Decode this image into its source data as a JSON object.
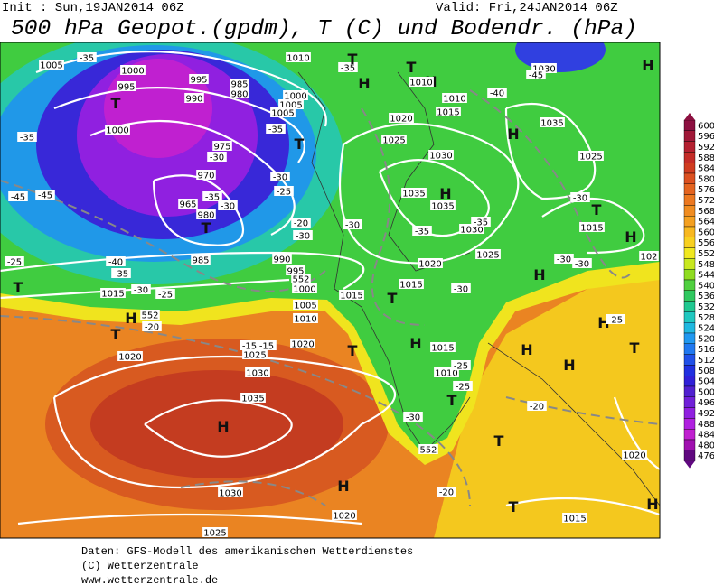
{
  "header": {
    "init": "Init : Sun,19JAN2014 06Z",
    "valid": "Valid: Fri,24JAN2014 06Z",
    "title": "500 hPa Geopot.(gpdm), T (C) und Bodendr. (hPa)"
  },
  "color_scale": {
    "levels": [
      600,
      596,
      592,
      588,
      584,
      580,
      576,
      572,
      568,
      564,
      560,
      556,
      552,
      548,
      544,
      540,
      536,
      532,
      528,
      524,
      520,
      516,
      512,
      508,
      504,
      500,
      496,
      492,
      488,
      484,
      480,
      476
    ],
    "colors": [
      "#8c1040",
      "#a01838",
      "#b42030",
      "#c42c28",
      "#d03c20",
      "#dc5020",
      "#e46420",
      "#ec7820",
      "#f08c20",
      "#f4a020",
      "#f8b820",
      "#f8d020",
      "#f0e820",
      "#c8e820",
      "#90dc20",
      "#50d040",
      "#30c860",
      "#20c890",
      "#20c8c0",
      "#20b8e0",
      "#2098f0",
      "#2078f0",
      "#2050e8",
      "#2030e0",
      "#3020d8",
      "#5020d0",
      "#7020d8",
      "#9020e0",
      "#b020e0",
      "#c020d0",
      "#a010b0",
      "#600880"
    ]
  },
  "map_labels": [
    "1005",
    "-35",
    "1000",
    "995",
    "995",
    "985",
    "980",
    "990",
    "1000",
    "T",
    "-35",
    "975",
    "-30",
    "970",
    "965",
    "980",
    "-35",
    "-30",
    "T",
    "985",
    "-25",
    "-40",
    "-35",
    "-45",
    "-45",
    "1015",
    "-30",
    "-25",
    "T",
    "H",
    "T",
    "-20",
    "1020",
    "1025",
    "1030",
    "1035",
    "H",
    "-15",
    "-15",
    "1020",
    "1030",
    "1025",
    "1020",
    "H",
    "T",
    "1010",
    "-35",
    "T",
    "H",
    "T",
    "H",
    "1010",
    "1010",
    "1015",
    "1020",
    "1025",
    "1030",
    "1035",
    "H",
    "1035",
    "-35",
    "1030",
    "-35",
    "1025",
    "1020",
    "1015",
    "H",
    "1005",
    "1000",
    "1005",
    "-35",
    "T",
    "-30",
    "-25",
    "-30",
    "-20",
    "-30",
    "990",
    "995",
    "1000",
    "1005",
    "1010",
    "1015",
    "T",
    "H",
    "-30",
    "1015",
    "1010",
    "-25",
    "-25",
    "T",
    "-30",
    "T",
    "H",
    "H",
    "-25",
    "H",
    "-20",
    "T",
    "1020",
    "-20",
    "T",
    "1015",
    "H",
    "H",
    "1030",
    "-45",
    "-40",
    "1035",
    "H",
    "1025",
    "-30",
    "T",
    "1015",
    "H",
    "-30",
    "-30",
    "102",
    "552",
    "552",
    "552"
  ],
  "footer": [
    "Daten: GFS-Modell des amerikanischen Wetterdienstes",
    "(C) Wetterzentrale",
    "www.wetterzentrale.de"
  ]
}
